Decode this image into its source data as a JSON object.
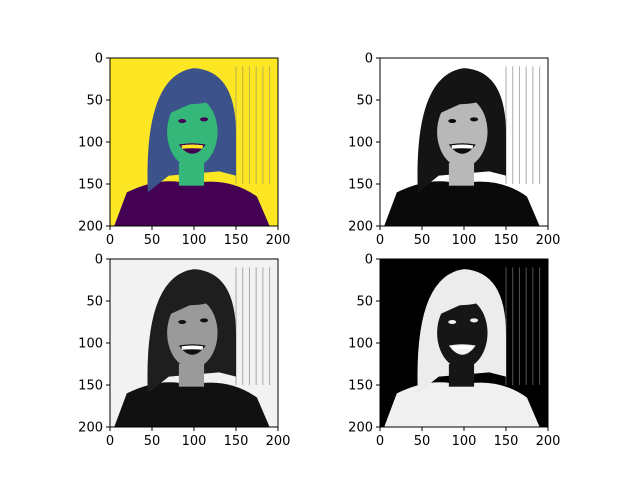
{
  "chart_data": [
    {
      "type": "image",
      "colormap": "viridis",
      "subject": "portrait photo of a long-haired person laughing",
      "xlim": [
        0,
        200
      ],
      "ylim": [
        200,
        0
      ],
      "xticks": [
        0,
        50,
        100,
        150,
        200
      ],
      "yticks": [
        0,
        50,
        100,
        150,
        200
      ],
      "colors": {
        "background": "#fde725",
        "face": "#35b779",
        "hair": "#3b528b",
        "dark": "#440154",
        "mouth": "#fde725"
      }
    },
    {
      "type": "image",
      "colormap": "gray",
      "subject": "portrait photo, grayscale with white background",
      "xlim": [
        0,
        200
      ],
      "ylim": [
        200,
        0
      ],
      "xticks": [
        0,
        50,
        100,
        150,
        200
      ],
      "yticks": [
        0,
        50,
        100,
        150,
        200
      ],
      "colors": {
        "background": "#ffffff",
        "face": "#b8b8b8",
        "hair": "#141414",
        "dark": "#0a0a0a",
        "mouth": "#ffffff"
      }
    },
    {
      "type": "image",
      "colormap": "gray",
      "subject": "portrait photo, grayscale",
      "xlim": [
        0,
        200
      ],
      "ylim": [
        200,
        0
      ],
      "xticks": [
        0,
        50,
        100,
        150,
        200
      ],
      "yticks": [
        0,
        50,
        100,
        150,
        200
      ],
      "colors": {
        "background": "#f2f2f2",
        "face": "#9a9a9a",
        "hair": "#1e1e1e",
        "dark": "#111111",
        "mouth": "#ffffff"
      }
    },
    {
      "type": "image",
      "colormap": "gray_inverted",
      "subject": "portrait photo, inverted grayscale",
      "xlim": [
        0,
        200
      ],
      "ylim": [
        200,
        0
      ],
      "xticks": [
        0,
        50,
        100,
        150,
        200
      ],
      "yticks": [
        0,
        50,
        100,
        150,
        200
      ],
      "colors": {
        "background": "#000000",
        "face": "#161616",
        "hair": "#ececec",
        "dark": "#f0f0f0",
        "mouth": "#ffffff"
      }
    }
  ]
}
